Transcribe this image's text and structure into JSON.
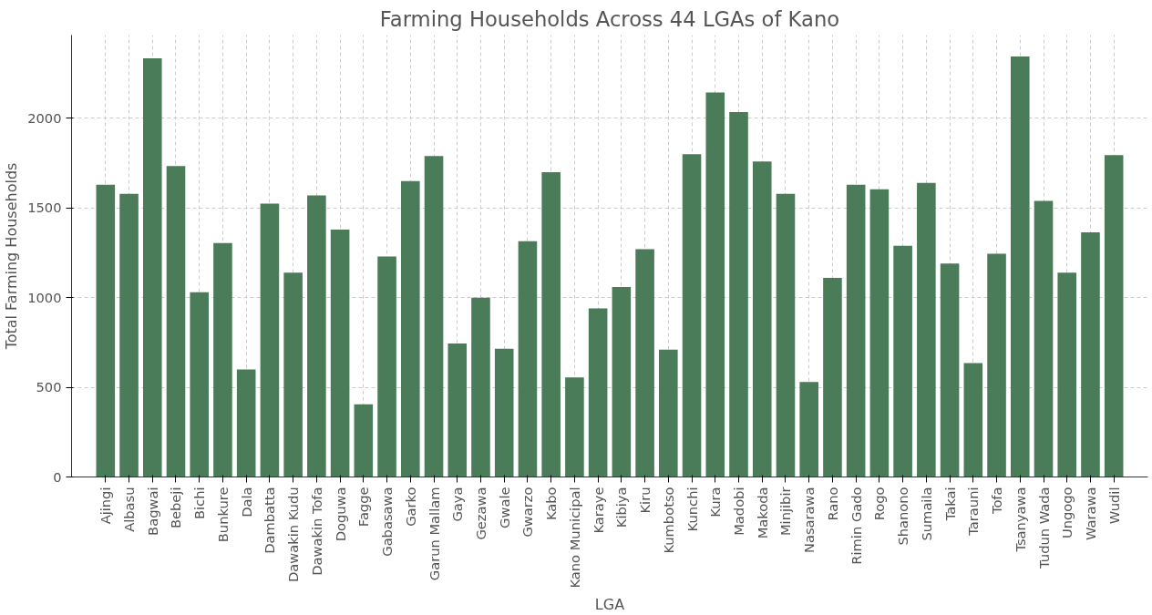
{
  "chart_data": {
    "type": "bar",
    "title": "Farming Households Across 44 LGAs of Kano",
    "xlabel": "LGA",
    "ylabel": "Total Farming Households",
    "categories": [
      "Ajingi",
      "Albasu",
      "Bagwai",
      "Bebeji",
      "Bichi",
      "Bunkure",
      "Dala",
      "Dambatta",
      "Dawakin Kudu",
      "Dawakin Tofa",
      "Doguwa",
      "Fagge",
      "Gabasawa",
      "Garko",
      "Garun Mallam",
      "Gaya",
      "Gezawa",
      "Gwale",
      "Gwarzo",
      "Kabo",
      "Kano Municipal",
      "Karaye",
      "Kibiya",
      "Kiru",
      "Kumbotso",
      "Kunchi",
      "Kura",
      "Madobi",
      "Makoda",
      "Minjibir",
      "Nasarawa",
      "Rano",
      "Rimin Gado",
      "Rogo",
      "Shanono",
      "Sumaila",
      "Takai",
      "Tarauni",
      "Tofa",
      "Tsanyawa",
      "Tudun Wada",
      "Ungogo",
      "Warawa",
      "Wudil"
    ],
    "values": [
      1630,
      1580,
      2335,
      1735,
      1030,
      1305,
      600,
      1525,
      1140,
      1570,
      1380,
      405,
      1230,
      1650,
      1790,
      745,
      1000,
      715,
      1315,
      1700,
      555,
      940,
      1060,
      1270,
      710,
      1800,
      2145,
      2035,
      1760,
      1580,
      530,
      1110,
      1630,
      1605,
      1290,
      1640,
      1190,
      635,
      1245,
      2345,
      1540,
      1140,
      1365,
      1795
    ],
    "color": "#4a7c59",
    "ylim": [
      0,
      2465
    ],
    "yticks": [
      0,
      500,
      1000,
      1500,
      2000
    ],
    "grid": true
  }
}
